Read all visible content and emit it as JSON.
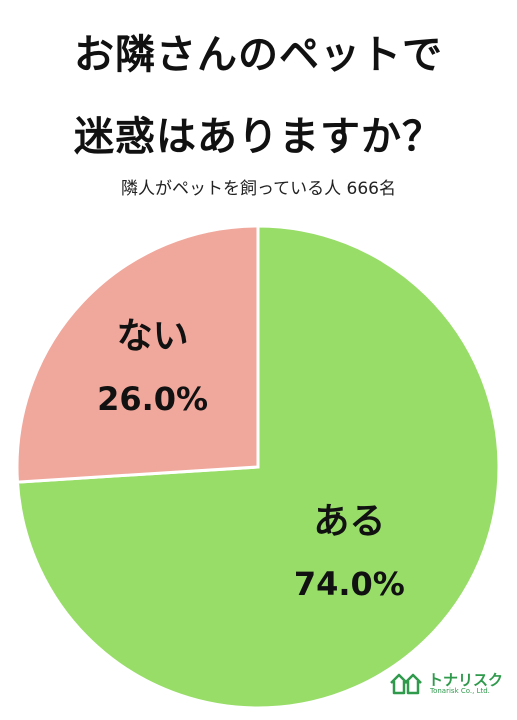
{
  "chart_data": {
    "type": "pie",
    "title_line1": "お隣さんのペットで",
    "title_line2": "迷惑はありますか？",
    "subtitle": "隣人がペットを飼っている人 666名",
    "slices": [
      {
        "name": "ある",
        "value": 74.0,
        "label": "74.0%",
        "color": "#97dd68"
      },
      {
        "name": "ない",
        "value": 26.0,
        "label": "26.0%",
        "color": "#f0a79c"
      }
    ],
    "start": "12 o'clock",
    "direction": "clockwise"
  },
  "colors": {
    "separator": "#ffffff",
    "logo_green": "#2f9a4c"
  },
  "logo": {
    "name": "トナリスク",
    "company": "Tonarisk Co., Ltd."
  }
}
